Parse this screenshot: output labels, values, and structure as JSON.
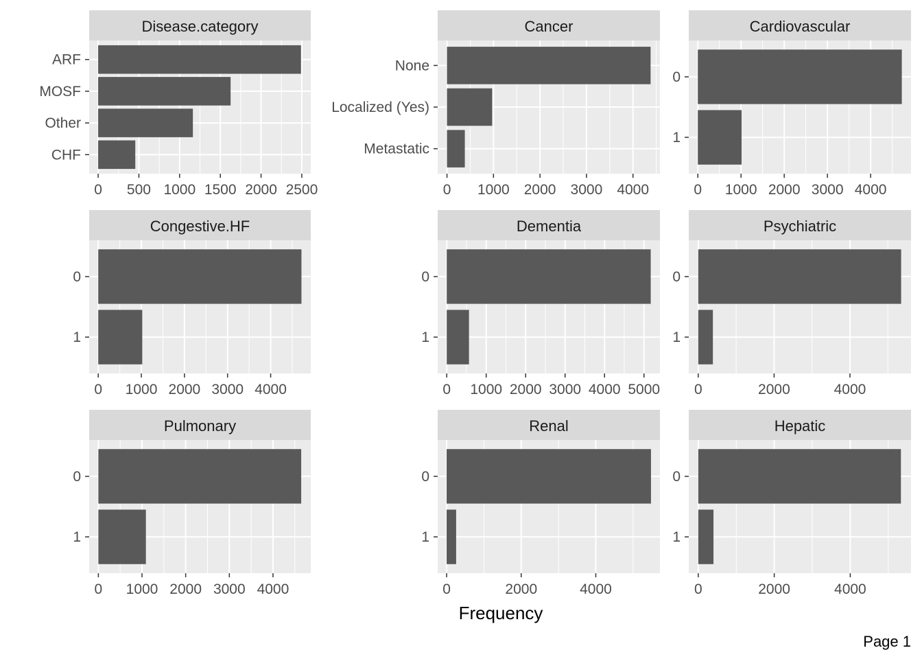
{
  "colors": {
    "panel_background": "#ebebeb",
    "strip_background": "#d9d9d9",
    "bar_fill": "#595959",
    "grid": "#ffffff",
    "tick": "#333333"
  },
  "page_label": "Page 1",
  "chart_data": {
    "type": "bar",
    "orientation": "horizontal",
    "layout": "facet grid 3x3",
    "xlabel": "Frequency",
    "ylabel": "",
    "grid": true,
    "legend": "none",
    "panels": [
      {
        "title": "Disease.category",
        "categories": [
          "ARF",
          "MOSF",
          "Other",
          "CHF"
        ],
        "values": [
          2490,
          1626,
          1163,
          456
        ],
        "xlim": [
          -110,
          2610
        ],
        "xticks": [
          0,
          500,
          1000,
          1500,
          2000,
          2500
        ],
        "xtick_labels": [
          "0",
          "500",
          "1000",
          "1500",
          "2000",
          "2500"
        ]
      },
      {
        "title": "Cancer",
        "categories": [
          "None",
          "Localized (Yes)",
          "Metastatic"
        ],
        "values": [
          4379,
          972,
          384
        ],
        "xlim": [
          -200,
          4580
        ],
        "xticks": [
          0,
          1000,
          2000,
          3000,
          4000
        ],
        "xtick_labels": [
          "0",
          "1000",
          "2000",
          "3000",
          "4000"
        ]
      },
      {
        "title": "Cardiovascular",
        "categories": [
          "0",
          "1"
        ],
        "values": [
          4722,
          1013
        ],
        "xlim": [
          -210,
          4935
        ],
        "xticks": [
          0,
          1000,
          2000,
          3000,
          4000
        ],
        "xtick_labels": [
          "0",
          "1000",
          "2000",
          "3000",
          "4000"
        ]
      },
      {
        "title": "Congestive.HF",
        "categories": [
          "0",
          "1"
        ],
        "values": [
          4714,
          1021
        ],
        "xlim": [
          -210,
          4930
        ],
        "xticks": [
          0,
          1000,
          2000,
          3000,
          4000
        ],
        "xtick_labels": [
          "0",
          "1000",
          "2000",
          "3000",
          "4000"
        ]
      },
      {
        "title": "Dementia",
        "categories": [
          "0",
          "1"
        ],
        "values": [
          5171,
          564
        ],
        "xlim": [
          -230,
          5405
        ],
        "xticks": [
          0,
          1000,
          2000,
          3000,
          4000,
          5000
        ],
        "xtick_labels": [
          "0",
          "1000",
          "2000",
          "3000",
          "4000",
          "5000"
        ]
      },
      {
        "title": "Psychiatric",
        "categories": [
          "0",
          "1"
        ],
        "values": [
          5349,
          386
        ],
        "xlim": [
          -250,
          5610
        ],
        "xticks": [
          0,
          2000,
          4000
        ],
        "xtick_labels": [
          "0",
          "2000",
          "4000"
        ]
      },
      {
        "title": "Pulmonary",
        "categories": [
          "0",
          "1"
        ],
        "values": [
          4646,
          1089
        ],
        "xlim": [
          -210,
          4865
        ],
        "xticks": [
          0,
          1000,
          2000,
          3000,
          4000
        ],
        "xtick_labels": [
          "0",
          "1000",
          "2000",
          "3000",
          "4000"
        ]
      },
      {
        "title": "Renal",
        "categories": [
          "0",
          "1"
        ],
        "values": [
          5480,
          255
        ],
        "xlim": [
          -240,
          5720
        ],
        "xticks": [
          0,
          2000,
          4000
        ],
        "xtick_labels": [
          "0",
          "2000",
          "4000"
        ]
      },
      {
        "title": "Hepatic",
        "categories": [
          "0",
          "1"
        ],
        "values": [
          5334,
          401
        ],
        "xlim": [
          -250,
          5600
        ],
        "xticks": [
          0,
          2000,
          4000
        ],
        "xtick_labels": [
          "0",
          "2000",
          "4000"
        ]
      }
    ]
  }
}
